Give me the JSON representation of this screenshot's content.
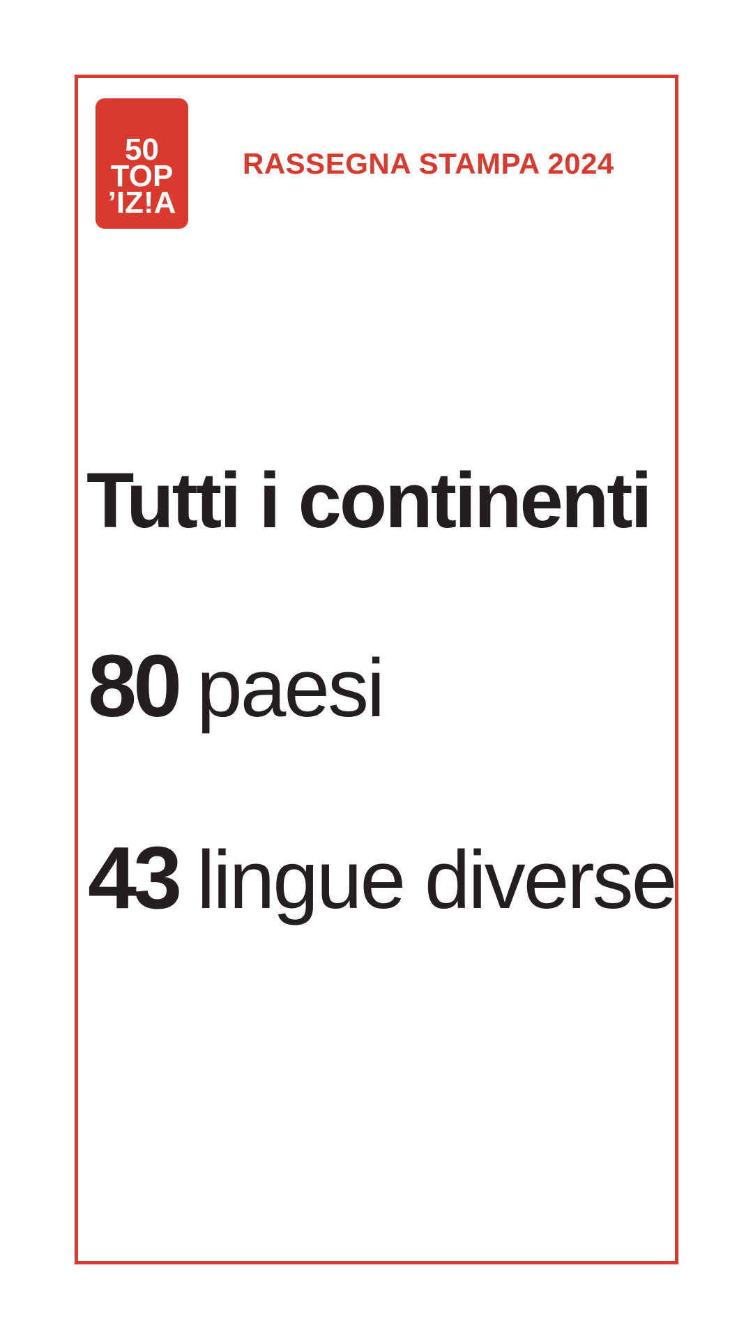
{
  "page": {
    "background_color": "#ffffff",
    "accent_red": "#da3a2e",
    "text_dark": "#231f20"
  },
  "header": {
    "logo": {
      "alt": "50 Top Pizza",
      "lines": [
        "50",
        "TOP",
        "’IZ!A"
      ]
    },
    "press_label": "RASSEGNA STAMPA 2024"
  },
  "main": {
    "heading": "Tutti i continenti",
    "stats": [
      {
        "value": "80",
        "label": "paesi"
      },
      {
        "value": "43",
        "label": "lingue diverse"
      }
    ]
  }
}
